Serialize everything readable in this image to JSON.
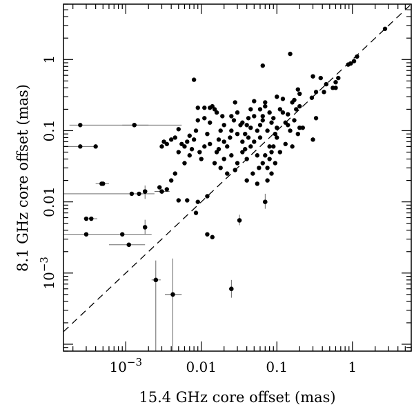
{
  "chart_data": {
    "type": "scatter",
    "title": "",
    "xlabel": "15.4 GHz core offset (mas)",
    "ylabel": "8.1 GHz core offset (mas)",
    "xscale": "log",
    "yscale": "log",
    "xlim": [
      0.00015,
      6
    ],
    "ylim": [
      8e-05,
      6
    ],
    "grid": false,
    "reference_line": {
      "label": "y = x",
      "style": "dashed"
    },
    "x_ticks": [
      {
        "value": 0.001,
        "base": "10",
        "exp": "−3"
      },
      {
        "value": 0.01,
        "text": "0.01"
      },
      {
        "value": 0.1,
        "text": "0.1"
      },
      {
        "value": 1,
        "text": "1"
      }
    ],
    "y_ticks": [
      {
        "value": 0.001,
        "base": "10",
        "exp": "−3"
      },
      {
        "value": 0.01,
        "text": "0.01"
      },
      {
        "value": 0.1,
        "text": "0.1"
      },
      {
        "value": 1,
        "text": "1"
      }
    ],
    "points": [
      {
        "x": 2.7,
        "y": 2.7
      },
      {
        "x": 1.15,
        "y": 1.1
      },
      {
        "x": 1.05,
        "y": 0.95
      },
      {
        "x": 0.95,
        "y": 0.88
      },
      {
        "x": 0.88,
        "y": 0.85
      },
      {
        "x": 0.65,
        "y": 0.55
      },
      {
        "x": 0.6,
        "y": 0.48
      },
      {
        "x": 0.55,
        "y": 0.4
      },
      {
        "x": 0.6,
        "y": 0.4
      },
      {
        "x": 0.45,
        "y": 0.45
      },
      {
        "x": 0.42,
        "y": 0.35
      },
      {
        "x": 0.38,
        "y": 0.55
      },
      {
        "x": 0.33,
        "y": 0.35
      },
      {
        "x": 0.3,
        "y": 0.58
      },
      {
        "x": 0.29,
        "y": 0.29
      },
      {
        "x": 0.33,
        "y": 0.15
      },
      {
        "x": 0.3,
        "y": 0.075
      },
      {
        "x": 0.15,
        "y": 1.2
      },
      {
        "x": 0.065,
        "y": 0.82
      },
      {
        "x": 0.008,
        "y": 0.52
      },
      {
        "x": 0.19,
        "y": 0.38
      },
      {
        "x": 0.2,
        "y": 0.33
      },
      {
        "x": 0.17,
        "y": 0.27
      },
      {
        "x": 0.16,
        "y": 0.25
      },
      {
        "x": 0.2,
        "y": 0.22
      },
      {
        "x": 0.18,
        "y": 0.2
      },
      {
        "x": 0.17,
        "y": 0.14
      },
      {
        "x": 0.2,
        "y": 0.11
      },
      {
        "x": 0.22,
        "y": 0.11
      },
      {
        "x": 0.19,
        "y": 0.09
      },
      {
        "x": 0.14,
        "y": 0.12
      },
      {
        "x": 0.13,
        "y": 0.13
      },
      {
        "x": 0.15,
        "y": 0.1
      },
      {
        "x": 0.12,
        "y": 0.18
      },
      {
        "x": 0.11,
        "y": 0.2
      },
      {
        "x": 0.1,
        "y": 0.11
      },
      {
        "x": 0.09,
        "y": 0.15
      },
      {
        "x": 0.085,
        "y": 0.13
      },
      {
        "x": 0.095,
        "y": 0.09
      },
      {
        "x": 0.1,
        "y": 0.08
      },
      {
        "x": 0.08,
        "y": 0.06
      },
      {
        "x": 0.075,
        "y": 0.1
      },
      {
        "x": 0.07,
        "y": 0.25
      },
      {
        "x": 0.065,
        "y": 0.16
      },
      {
        "x": 0.06,
        "y": 0.12
      },
      {
        "x": 0.055,
        "y": 0.1
      },
      {
        "x": 0.05,
        "y": 0.26
      },
      {
        "x": 0.045,
        "y": 0.2
      },
      {
        "x": 0.042,
        "y": 0.15
      },
      {
        "x": 0.04,
        "y": 0.12
      },
      {
        "x": 0.038,
        "y": 0.09
      },
      {
        "x": 0.035,
        "y": 0.07
      },
      {
        "x": 0.033,
        "y": 0.12
      },
      {
        "x": 0.03,
        "y": 0.18
      },
      {
        "x": 0.028,
        "y": 0.25
      },
      {
        "x": 0.027,
        "y": 0.14
      },
      {
        "x": 0.025,
        "y": 0.1
      },
      {
        "x": 0.024,
        "y": 0.08
      },
      {
        "x": 0.022,
        "y": 0.06
      },
      {
        "x": 0.02,
        "y": 0.12
      },
      {
        "x": 0.019,
        "y": 0.16
      },
      {
        "x": 0.018,
        "y": 0.1
      },
      {
        "x": 0.017,
        "y": 0.075
      },
      {
        "x": 0.016,
        "y": 0.05
      },
      {
        "x": 0.015,
        "y": 0.2
      },
      {
        "x": 0.014,
        "y": 0.22
      },
      {
        "x": 0.013,
        "y": 0.13
      },
      {
        "x": 0.012,
        "y": 0.09
      },
      {
        "x": 0.011,
        "y": 0.06
      },
      {
        "x": 0.01,
        "y": 0.04
      },
      {
        "x": 0.009,
        "y": 0.14
      },
      {
        "x": 0.0085,
        "y": 0.1
      },
      {
        "x": 0.008,
        "y": 0.075
      },
      {
        "x": 0.0075,
        "y": 0.055
      },
      {
        "x": 0.007,
        "y": 0.045
      },
      {
        "x": 0.0065,
        "y": 0.07
      },
      {
        "x": 0.006,
        "y": 0.035
      },
      {
        "x": 0.0055,
        "y": 0.065
      },
      {
        "x": 0.005,
        "y": 0.05
      },
      {
        "x": 0.0045,
        "y": 0.025
      },
      {
        "x": 0.004,
        "y": 0.02
      },
      {
        "x": 0.0035,
        "y": 0.015
      },
      {
        "x": 0.003,
        "y": 0.06
      },
      {
        "x": 0.0028,
        "y": 0.016
      },
      {
        "x": 0.005,
        "y": 0.105
      },
      {
        "x": 0.0045,
        "y": 0.08
      },
      {
        "x": 0.004,
        "y": 0.075
      },
      {
        "x": 0.0035,
        "y": 0.065
      },
      {
        "x": 0.0032,
        "y": 0.07
      },
      {
        "x": 0.009,
        "y": 0.21
      },
      {
        "x": 0.011,
        "y": 0.21
      },
      {
        "x": 0.013,
        "y": 0.21
      },
      {
        "x": 0.018,
        "y": 0.03
      },
      {
        "x": 0.015,
        "y": 0.035
      },
      {
        "x": 0.02,
        "y": 0.04
      },
      {
        "x": 0.025,
        "y": 0.045
      },
      {
        "x": 0.03,
        "y": 0.035
      },
      {
        "x": 0.035,
        "y": 0.05
      },
      {
        "x": 0.04,
        "y": 0.04
      },
      {
        "x": 0.045,
        "y": 0.06
      },
      {
        "x": 0.05,
        "y": 0.07
      },
      {
        "x": 0.055,
        "y": 0.045
      },
      {
        "x": 0.06,
        "y": 0.08
      },
      {
        "x": 0.065,
        "y": 0.035
      },
      {
        "x": 0.07,
        "y": 0.045
      },
      {
        "x": 0.075,
        "y": 0.03
      },
      {
        "x": 0.08,
        "y": 0.04
      },
      {
        "x": 0.085,
        "y": 0.05
      },
      {
        "x": 0.09,
        "y": 0.06
      },
      {
        "x": 0.022,
        "y": 0.025
      },
      {
        "x": 0.028,
        "y": 0.028
      },
      {
        "x": 0.012,
        "y": 0.012
      },
      {
        "x": 0.009,
        "y": 0.01
      },
      {
        "x": 0.0085,
        "y": 0.007
      },
      {
        "x": 0.0065,
        "y": 0.0105
      },
      {
        "x": 0.005,
        "y": 0.0105
      },
      {
        "x": 0.07,
        "y": 0.01
      },
      {
        "x": 0.032,
        "y": 0.0055
      },
      {
        "x": 0.012,
        "y": 0.0035
      },
      {
        "x": 0.014,
        "y": 0.0032
      },
      {
        "x": 0.025,
        "y": 0.0006
      },
      {
        "x": 0.0042,
        "y": 0.0005
      },
      {
        "x": 0.0025,
        "y": 0.0008
      },
      {
        "x": 0.0018,
        "y": 0.0044
      },
      {
        "x": 0.0009,
        "y": 0.0035
      },
      {
        "x": 0.0011,
        "y": 0.0025
      },
      {
        "x": 0.0003,
        "y": 0.0058
      },
      {
        "x": 0.00048,
        "y": 0.018
      },
      {
        "x": 0.0004,
        "y": 0.06
      },
      {
        "x": 0.0013,
        "y": 0.12
      },
      {
        "x": 0.0015,
        "y": 0.013
      },
      {
        "x": 0.0018,
        "y": 0.014
      },
      {
        "x": 0.003,
        "y": 0.014
      },
      {
        "x": 0.06,
        "y": 0.2
      },
      {
        "x": 0.07,
        "y": 0.22
      },
      {
        "x": 0.1,
        "y": 0.3
      },
      {
        "x": 0.12,
        "y": 0.28
      },
      {
        "x": 0.14,
        "y": 0.17
      },
      {
        "x": 0.045,
        "y": 0.11
      },
      {
        "x": 0.035,
        "y": 0.13
      },
      {
        "x": 0.03,
        "y": 0.09
      },
      {
        "x": 0.025,
        "y": 0.16
      },
      {
        "x": 0.02,
        "y": 0.07
      },
      {
        "x": 0.016,
        "y": 0.18
      },
      {
        "x": 0.011,
        "y": 0.15
      },
      {
        "x": 0.007,
        "y": 0.085
      },
      {
        "x": 0.006,
        "y": 0.06
      },
      {
        "x": 0.0095,
        "y": 0.05
      },
      {
        "x": 0.013,
        "y": 0.065
      },
      {
        "x": 0.017,
        "y": 0.055
      },
      {
        "x": 0.058,
        "y": 0.03
      },
      {
        "x": 0.075,
        "y": 0.02
      },
      {
        "x": 0.055,
        "y": 0.018
      },
      {
        "x": 0.04,
        "y": 0.02
      },
      {
        "x": 0.048,
        "y": 0.025
      },
      {
        "x": 0.085,
        "y": 0.025
      },
      {
        "x": 0.095,
        "y": 0.035
      },
      {
        "x": 0.11,
        "y": 0.05
      },
      {
        "x": 0.13,
        "y": 0.065
      },
      {
        "x": 0.16,
        "y": 0.06
      },
      {
        "x": 0.065,
        "y": 0.14
      },
      {
        "x": 0.08,
        "y": 0.18
      },
      {
        "x": 0.05,
        "y": 0.16
      },
      {
        "x": 0.042,
        "y": 0.08
      },
      {
        "x": 0.038,
        "y": 0.055
      }
    ],
    "error_bars": [
      {
        "x": 0.00025,
        "y": 0.12,
        "xlo": 0.00018,
        "xhi": 0.0055
      },
      {
        "x": 0.00025,
        "y": 0.06,
        "xlo": 0.00015,
        "xhi": 0.0004
      },
      {
        "x": 0.0005,
        "y": 0.018,
        "xlo": 0.0004,
        "xhi": 0.0006
      },
      {
        "x": 0.0012,
        "y": 0.013,
        "xlo": 0.00015,
        "xhi": 0.0024
      },
      {
        "x": 0.0003,
        "y": 0.0035,
        "xlo": 0.00015,
        "xhi": 0.0022
      },
      {
        "x": 0.0011,
        "y": 0.0025,
        "xlo": 0.0006,
        "xhi": 0.0018
      },
      {
        "x": 0.00035,
        "y": 0.0058,
        "xlo": 0.00028,
        "xhi": 0.00042
      },
      {
        "x": 0.0025,
        "y": 0.0008,
        "ylo": 8e-05,
        "yhi": 0.0015,
        "xlo": 0.0022,
        "xhi": 0.0029
      },
      {
        "x": 0.0042,
        "y": 0.0005,
        "ylo": 8e-05,
        "yhi": 0.0016,
        "xlo": 0.0033,
        "xhi": 0.0055
      },
      {
        "x": 0.025,
        "y": 0.0006,
        "ylo": 0.00045,
        "yhi": 0.0008
      },
      {
        "x": 0.0018,
        "y": 0.0044,
        "ylo": 0.0035,
        "yhi": 0.0056
      },
      {
        "x": 0.0018,
        "y": 0.014,
        "ylo": 0.011,
        "yhi": 0.017
      },
      {
        "x": 0.07,
        "y": 0.01,
        "ylo": 0.008,
        "yhi": 0.013
      },
      {
        "x": 0.032,
        "y": 0.0055,
        "ylo": 0.0047,
        "yhi": 0.0066
      },
      {
        "x": 0.0013,
        "y": 0.12,
        "xlo": 0.0009,
        "xhi": 0.002
      },
      {
        "x": 0.003,
        "y": 0.014,
        "xlo": 0.0024,
        "xhi": 0.0038
      }
    ]
  }
}
